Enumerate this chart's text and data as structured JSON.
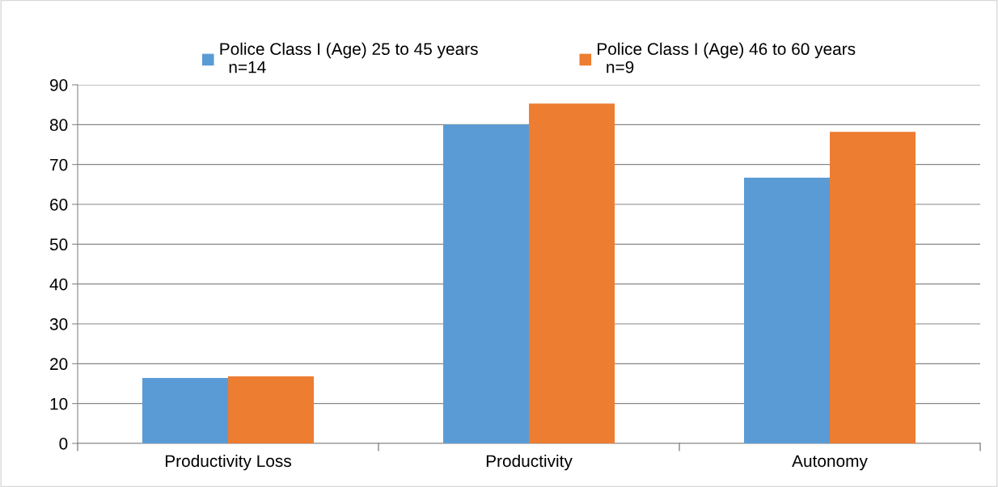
{
  "chart_data": {
    "type": "bar",
    "categories": [
      "Productivity Loss",
      "Productivity",
      "Autonomy"
    ],
    "series": [
      {
        "name": "Police Class I (Age) 25 to 45 years\n  n=14",
        "color": "#5b9bd5",
        "values": [
          16.4,
          80.0,
          66.7
        ]
      },
      {
        "name": "Police Class I (Age) 46 to 60 years\n  n=9",
        "color": "#ed7d31",
        "values": [
          16.8,
          85.3,
          78.2
        ]
      }
    ],
    "ylim": [
      0,
      90
    ],
    "yticks": [
      0,
      10,
      20,
      30,
      40,
      50,
      60,
      70,
      80,
      90
    ],
    "grid": "y",
    "legend": "top"
  }
}
